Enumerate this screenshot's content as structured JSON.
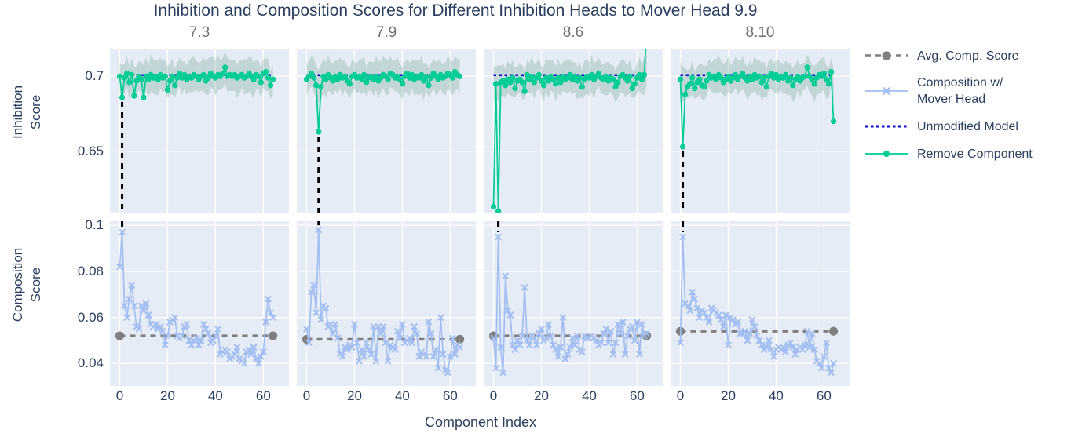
{
  "title": "Inhibition and Composition Scores for Different Inhibition Heads to Mover Head 9.9",
  "xlabel": "Component Index",
  "ylabel_top_line1": "Inhibition",
  "ylabel_top_line2": "Score",
  "ylabel_bot_line1": "Composition",
  "ylabel_bot_line2": "Score",
  "legend": {
    "items": [
      {
        "id": "avg-comp-score",
        "label1": "Avg. Comp. Score",
        "label2": "",
        "color": "#7f7f7f",
        "line_style": "dash",
        "marker": "circle"
      },
      {
        "id": "composition-w-mover-head",
        "label1": "Composition w/",
        "label2": "Mover Head",
        "color": "#a2bdf2",
        "line_style": "solid",
        "marker": "x"
      },
      {
        "id": "unmodified-model",
        "label1": "Unmodified Model",
        "label2": "",
        "color": "#0808c8",
        "line_style": "dot",
        "marker": "none"
      },
      {
        "id": "remove-component",
        "label1": "Remove Component",
        "label2": "",
        "color": "#00cc96",
        "line_style": "solid",
        "marker": "circle"
      }
    ]
  },
  "colors": {
    "paper": "#ffffff",
    "plot_bg": "#e5ecf6",
    "grid": "#ffffff",
    "title_text": "#2a3f5f",
    "subplot_title_text": "#6f6f6f",
    "tick_text": "#2a3f5f",
    "remove_component": "#00cc96",
    "composition_line": "#a2bdf2",
    "unmodified_model": "#0808c8",
    "avg_comp": "#7f7f7f",
    "band_fill": "rgba(96,150,130,0.26)",
    "dip_marker_line": "#000000"
  },
  "chart_data": {
    "type": "line",
    "suptitle": "Inhibition and Composition Scores for Different Inhibition Heads to Mover Head 9.9",
    "grid": true,
    "legend_position": "right",
    "x_label": "Component Index",
    "x_values_range": [
      0,
      64
    ],
    "xlim": [
      -4.1,
      70.7
    ],
    "xticks": [
      0,
      20,
      40,
      60
    ],
    "row_top": {
      "ylabel": "Inhibition Score",
      "ylim": [
        0.6085,
        0.7185
      ],
      "yticks": [
        {
          "v": 0.7,
          "label": "0.7"
        },
        {
          "v": 0.65,
          "label": "0.65"
        }
      ]
    },
    "row_bottom": {
      "ylabel": "Composition Score",
      "ylim": [
        0.0302,
        0.1018
      ],
      "yticks": [
        {
          "v": 0.1,
          "label": "0.1"
        },
        {
          "v": 0.08,
          "label": "0.08"
        },
        {
          "v": 0.06,
          "label": "0.06"
        },
        {
          "v": 0.04,
          "label": "0.04"
        }
      ]
    },
    "unmodified_model_score": 0.7008,
    "columns": [
      {
        "head": "7.3",
        "dip_x": 1,
        "avg_comp_score": 0.052,
        "inhibition": [
          0.7,
          0.686,
          0.699,
          0.702,
          0.696,
          0.701,
          0.687,
          0.697,
          0.7,
          0.698,
          0.686,
          0.7,
          0.698,
          0.701,
          0.699,
          0.7,
          0.698,
          0.701,
          0.699,
          0.7,
          0.691,
          0.697,
          0.7,
          0.694,
          0.699,
          0.702,
          0.699,
          0.701,
          0.698,
          0.7,
          0.699,
          0.701,
          0.7,
          0.698,
          0.7,
          0.701,
          0.697,
          0.699,
          0.702,
          0.7,
          0.699,
          0.701,
          0.7,
          0.702,
          0.706,
          0.7,
          0.701,
          0.7,
          0.701,
          0.699,
          0.7,
          0.701,
          0.699,
          0.7,
          0.702,
          0.7,
          0.698,
          0.701,
          0.7,
          0.696,
          0.702,
          0.703,
          0.699,
          0.694,
          0.698
        ],
        "composition": [
          0.082,
          0.097,
          0.065,
          0.06,
          0.068,
          0.074,
          0.065,
          0.056,
          0.055,
          0.065,
          0.063,
          0.066,
          0.061,
          0.057,
          0.056,
          0.057,
          0.055,
          0.056,
          0.054,
          0.048,
          0.052,
          0.058,
          0.059,
          0.06,
          0.052,
          0.051,
          0.052,
          0.056,
          0.057,
          0.05,
          0.048,
          0.05,
          0.051,
          0.048,
          0.05,
          0.057,
          0.055,
          0.053,
          0.049,
          0.05,
          0.052,
          0.055,
          0.044,
          0.045,
          0.046,
          0.045,
          0.042,
          0.043,
          0.044,
          0.047,
          0.042,
          0.041,
          0.04,
          0.045,
          0.046,
          0.044,
          0.047,
          0.042,
          0.04,
          0.043,
          0.045,
          0.058,
          0.068,
          0.062,
          0.06
        ]
      },
      {
        "head": "7.9",
        "dip_x": 5,
        "avg_comp_score": 0.0505,
        "inhibition": [
          0.698,
          0.7,
          0.702,
          0.699,
          0.694,
          0.663,
          0.693,
          0.7,
          0.698,
          0.701,
          0.699,
          0.697,
          0.7,
          0.698,
          0.701,
          0.699,
          0.7,
          0.697,
          0.695,
          0.7,
          0.701,
          0.699,
          0.7,
          0.698,
          0.701,
          0.696,
          0.699,
          0.7,
          0.698,
          0.7,
          0.697,
          0.699,
          0.701,
          0.7,
          0.698,
          0.702,
          0.701,
          0.699,
          0.7,
          0.698,
          0.695,
          0.7,
          0.702,
          0.699,
          0.701,
          0.698,
          0.7,
          0.699,
          0.701,
          0.697,
          0.7,
          0.694,
          0.699,
          0.702,
          0.7,
          0.698,
          0.701,
          0.699,
          0.7,
          0.702,
          0.701,
          0.699,
          0.703,
          0.701,
          0.7
        ],
        "composition": [
          0.055,
          0.049,
          0.071,
          0.074,
          0.062,
          0.098,
          0.059,
          0.065,
          0.064,
          0.056,
          0.057,
          0.053,
          0.057,
          0.051,
          0.044,
          0.043,
          0.047,
          0.046,
          0.048,
          0.047,
          0.057,
          0.049,
          0.041,
          0.046,
          0.043,
          0.049,
          0.046,
          0.044,
          0.056,
          0.041,
          0.056,
          0.053,
          0.056,
          0.049,
          0.041,
          0.048,
          0.047,
          0.046,
          0.054,
          0.051,
          0.057,
          0.049,
          0.05,
          0.051,
          0.049,
          0.056,
          0.053,
          0.043,
          0.045,
          0.044,
          0.043,
          0.058,
          0.053,
          0.043,
          0.046,
          0.038,
          0.06,
          0.044,
          0.037,
          0.036,
          0.043,
          0.051,
          0.044,
          0.048,
          0.047
        ]
      },
      {
        "head": "8.6",
        "dip_x": 2,
        "avg_comp_score": 0.052,
        "inhibition": [
          0.613,
          0.695,
          0.61,
          0.696,
          0.697,
          0.694,
          0.698,
          0.696,
          0.699,
          0.692,
          0.697,
          0.698,
          0.696,
          0.69,
          0.701,
          0.698,
          0.7,
          0.696,
          0.699,
          0.701,
          0.697,
          0.694,
          0.699,
          0.697,
          0.7,
          0.698,
          0.695,
          0.699,
          0.696,
          0.7,
          0.698,
          0.699,
          0.701,
          0.698,
          0.7,
          0.697,
          0.699,
          0.693,
          0.698,
          0.7,
          0.699,
          0.701,
          0.698,
          0.7,
          0.702,
          0.699,
          0.698,
          0.7,
          0.697,
          0.699,
          0.698,
          0.693,
          0.696,
          0.7,
          0.701,
          0.699,
          0.697,
          0.7,
          0.692,
          0.695,
          0.699,
          0.701,
          0.698,
          0.701,
          0.73
        ],
        "composition": [
          0.051,
          0.038,
          0.095,
          0.047,
          0.036,
          0.078,
          0.063,
          0.061,
          0.048,
          0.046,
          0.05,
          0.048,
          0.052,
          0.073,
          0.05,
          0.048,
          0.052,
          0.051,
          0.048,
          0.053,
          0.055,
          0.05,
          0.051,
          0.057,
          0.052,
          0.048,
          0.046,
          0.043,
          0.047,
          0.06,
          0.042,
          0.044,
          0.047,
          0.051,
          0.048,
          0.052,
          0.046,
          0.045,
          0.052,
          0.051,
          0.051,
          0.052,
          0.051,
          0.05,
          0.048,
          0.049,
          0.053,
          0.055,
          0.049,
          0.054,
          0.044,
          0.049,
          0.057,
          0.053,
          0.058,
          0.044,
          0.052,
          0.055,
          0.056,
          0.05,
          0.058,
          0.044,
          0.057,
          0.052,
          0.053
        ]
      },
      {
        "head": "8.10",
        "dip_x": 1,
        "avg_comp_score": 0.054,
        "inhibition": [
          0.698,
          0.653,
          0.688,
          0.693,
          0.695,
          0.699,
          0.692,
          0.696,
          0.698,
          0.694,
          0.693,
          0.697,
          0.701,
          0.699,
          0.7,
          0.698,
          0.701,
          0.699,
          0.696,
          0.698,
          0.7,
          0.697,
          0.699,
          0.701,
          0.698,
          0.7,
          0.702,
          0.699,
          0.697,
          0.7,
          0.698,
          0.701,
          0.699,
          0.7,
          0.696,
          0.699,
          0.693,
          0.7,
          0.702,
          0.699,
          0.701,
          0.698,
          0.7,
          0.699,
          0.701,
          0.697,
          0.699,
          0.694,
          0.698,
          0.7,
          0.697,
          0.699,
          0.7,
          0.706,
          0.7,
          0.698,
          0.695,
          0.699,
          0.701,
          0.7,
          0.702,
          0.698,
          0.695,
          0.703,
          0.67
        ],
        "composition": [
          0.049,
          0.095,
          0.066,
          0.065,
          0.063,
          0.071,
          0.068,
          0.064,
          0.06,
          0.063,
          0.062,
          0.06,
          0.058,
          0.064,
          0.063,
          0.062,
          0.061,
          0.059,
          0.056,
          0.061,
          0.048,
          0.06,
          0.059,
          0.057,
          0.058,
          0.053,
          0.053,
          0.054,
          0.05,
          0.053,
          0.059,
          0.056,
          0.052,
          0.05,
          0.048,
          0.046,
          0.047,
          0.05,
          0.046,
          0.043,
          0.046,
          0.047,
          0.046,
          0.047,
          0.045,
          0.048,
          0.049,
          0.047,
          0.044,
          0.046,
          0.047,
          0.046,
          0.048,
          0.054,
          0.047,
          0.053,
          0.046,
          0.041,
          0.04,
          0.038,
          0.043,
          0.049,
          0.038,
          0.036,
          0.04
        ]
      }
    ]
  }
}
